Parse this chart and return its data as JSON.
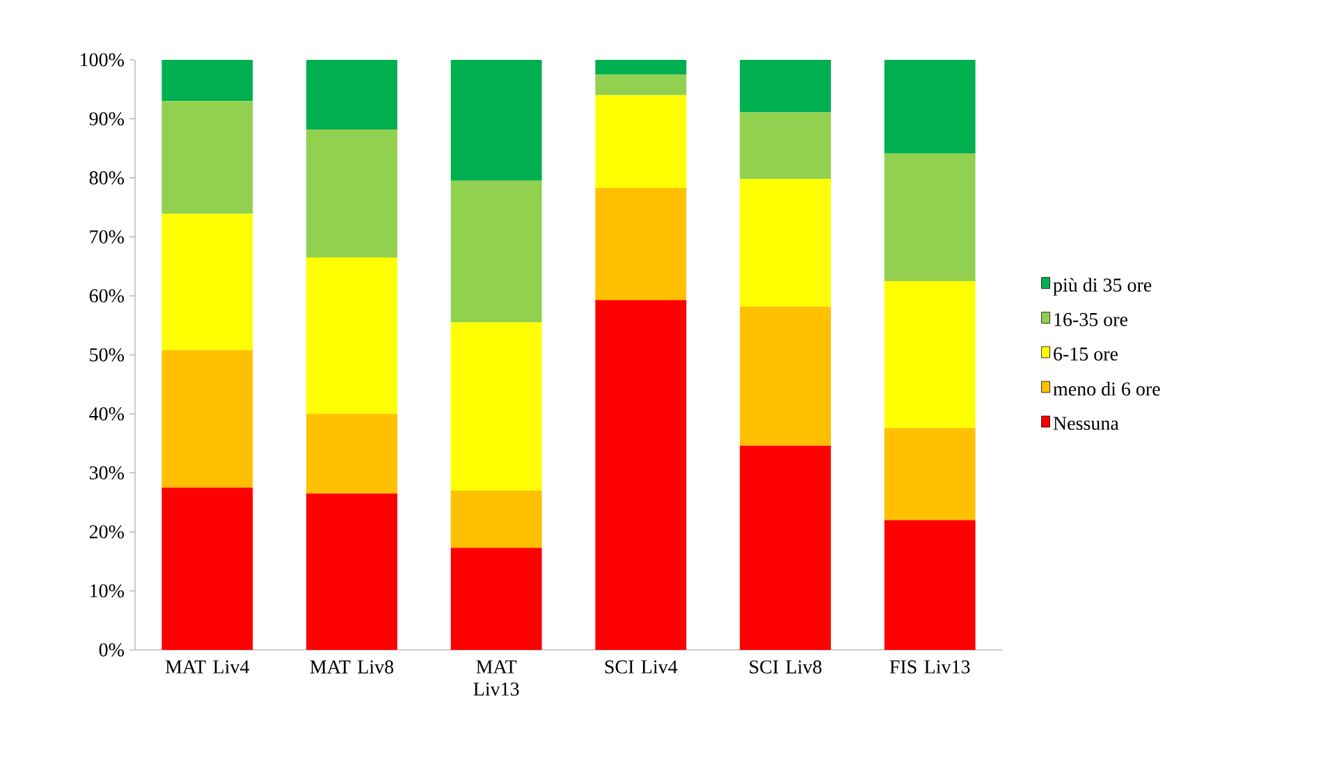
{
  "chart_data": {
    "type": "bar",
    "stacked": true,
    "legend": "right",
    "grid": false,
    "categories": [
      "MAT Liv4",
      "MAT Liv8",
      "MAT Liv13",
      "SCI Liv4",
      "SCI Liv8",
      "FIS Liv13"
    ],
    "ylim": [
      0,
      100
    ],
    "yticks": [
      {
        "value": 0,
        "label": "0%"
      },
      {
        "value": 10,
        "label": "10%"
      },
      {
        "value": 20,
        "label": "20%"
      },
      {
        "value": 30,
        "label": "30%"
      },
      {
        "value": 40,
        "label": "40%"
      },
      {
        "value": 50,
        "label": "50%"
      },
      {
        "value": 60,
        "label": "60%"
      },
      {
        "value": 70,
        "label": "70%"
      },
      {
        "value": 80,
        "label": "80%"
      },
      {
        "value": 90,
        "label": "90%"
      },
      {
        "value": 100,
        "label": "100%"
      }
    ],
    "series": [
      {
        "name": "Nessuna",
        "color": "#ff0000",
        "values": [
          27.5,
          26.5,
          17.3,
          59.3,
          34.6,
          22
        ]
      },
      {
        "name": "meno di 6 ore",
        "color": "#ffc000",
        "values": [
          23.3,
          13.5,
          9.7,
          19,
          23.6,
          15.6
        ]
      },
      {
        "name": "6-15 ore",
        "color": "#ffff00",
        "values": [
          23.1,
          26.5,
          28.5,
          15.7,
          21.6,
          24.9
        ]
      },
      {
        "name": "16-35 ore",
        "color": "#92d050",
        "values": [
          19.1,
          21.7,
          24,
          3.5,
          11.3,
          21.6
        ]
      },
      {
        "name": "più di 35 ore",
        "color": "#00b050",
        "values": [
          7,
          11.8,
          20.5,
          2.5,
          8.9,
          15.9
        ]
      }
    ]
  }
}
